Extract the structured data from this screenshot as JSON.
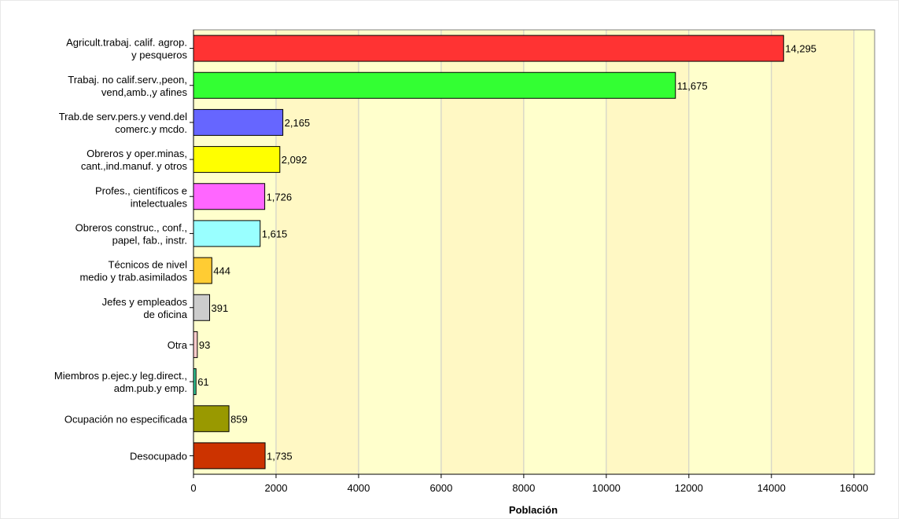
{
  "chart_data": {
    "type": "bar",
    "orientation": "horizontal",
    "categories": [
      [
        "Agricult.trabaj.  calif. agrop.",
        "y  pesqueros"
      ],
      [
        "Trabaj.  no calif.serv.,peon,",
        "vend,amb.,y  afines"
      ],
      [
        "Trab.de  serv.pers.y vend.del",
        "comerc.y  mcdo."
      ],
      [
        "Obreros  y oper.minas,",
        "cant.,ind.manuf.  y otros"
      ],
      [
        "Profes.,  científicos e",
        "intelectuales"
      ],
      [
        "Obreros  construc., conf.,",
        "papel,  fab., instr."
      ],
      [
        "Técnicos  de nivel",
        "medio  y trab.asimilados"
      ],
      [
        "Jefes  y empleados",
        "de  oficina"
      ],
      [
        "Otra"
      ],
      [
        "Miembros  p.ejec.y leg.direct.,",
        "adm.pub.y  emp."
      ],
      [
        "Ocupación  no especificada"
      ],
      [
        "Desocupado"
      ]
    ],
    "values": [
      14295,
      11675,
      2165,
      2092,
      1726,
      1615,
      444,
      391,
      93,
      61,
      859,
      1735
    ],
    "value_labels": [
      "14,295",
      "11,675",
      "2,165",
      "2,092",
      "1,726",
      "1,615",
      "444",
      "391",
      "93",
      "61",
      "859",
      "1,735"
    ],
    "colors": [
      "#ff3333",
      "#33ff33",
      "#6666ff",
      "#ffff00",
      "#ff66ff",
      "#99ffff",
      "#ffcc33",
      "#cccccc",
      "#ffcccc",
      "#33cc99",
      "#999900",
      "#cc3300"
    ],
    "xlabel": "Población",
    "ylabel": "",
    "title": "",
    "xlim": [
      0,
      16500
    ],
    "xticks": [
      0,
      2000,
      4000,
      6000,
      8000,
      10000,
      12000,
      14000,
      16000
    ],
    "grid": "vertical",
    "background_bands": [
      "#ffffcc",
      "#fff8c4"
    ]
  }
}
